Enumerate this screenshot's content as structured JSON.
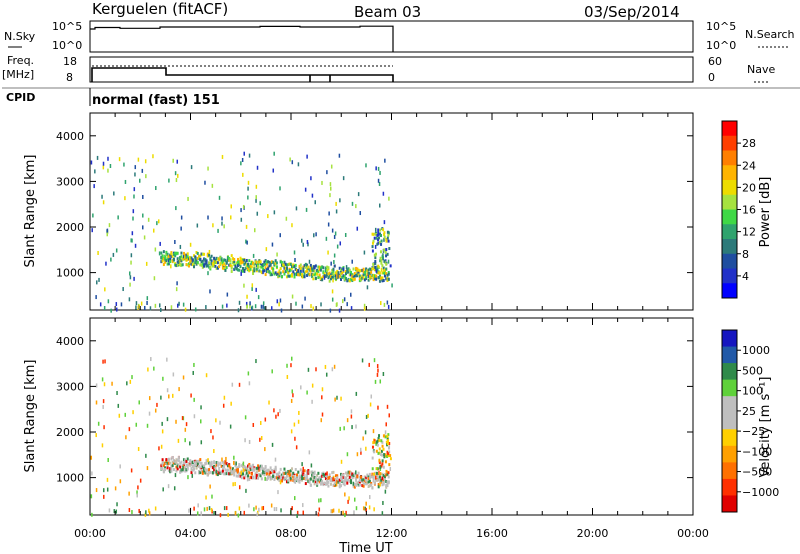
{
  "header": {
    "station": "Kerguelen (fitACF)",
    "beam": "Beam 03",
    "date": "03/Sep/2014"
  },
  "panel_labels": {
    "nsky": "N.Sky",
    "nsearch": "N.Search",
    "freq_top": "Freq.",
    "freq_unit": "[MHz]",
    "nave": "Nave",
    "cpid": "CPID",
    "cpid_value": "normal (fast) 151"
  },
  "ticks": {
    "nsky": [
      "10^5",
      "10^0"
    ],
    "nsearch": [
      "10^5",
      "10^0"
    ],
    "freq": [
      "18",
      "8"
    ],
    "nave": [
      "60",
      "0"
    ]
  },
  "chart_data": [
    {
      "type": "heatmap",
      "name": "power",
      "ylabel": "Slant Range [km]",
      "ylim": [
        180,
        4500
      ],
      "yticks": [
        "1000",
        "2000",
        "3000",
        "4000"
      ],
      "xlim": [
        0,
        24
      ],
      "colorbar": {
        "label": "Power [dB]",
        "ticks": [
          "28",
          "24",
          "20",
          "16",
          "12",
          "8",
          "4"
        ],
        "colors": [
          "#ff0000",
          "#ff3f00",
          "#ff7f00",
          "#ffb400",
          "#eddc00",
          "#a6e23f",
          "#3fd846",
          "#2fa36e",
          "#2c7a7a",
          "#1f4ea0",
          "#2131c8",
          "#0000ff"
        ]
      },
      "echo_band": [
        {
          "x": 2.8,
          "y": 1350
        },
        {
          "x": 4.0,
          "y": 1330
        },
        {
          "x": 6.0,
          "y": 1210
        },
        {
          "x": 8.0,
          "y": 1080
        },
        {
          "x": 10.0,
          "y": 1000
        },
        {
          "x": 11.9,
          "y": 980
        }
      ]
    },
    {
      "type": "heatmap",
      "name": "velocity",
      "ylabel": "Slant Range [km]",
      "ylim": [
        180,
        4500
      ],
      "yticks": [
        "1000",
        "2000",
        "3000",
        "4000"
      ],
      "xlim": [
        0,
        24
      ],
      "xticks": [
        "00:00",
        "04:00",
        "08:00",
        "12:00",
        "16:00",
        "20:00",
        "00:00"
      ],
      "xlabel": "Time UT",
      "colorbar": {
        "label": "Velocity [m s⁻¹]",
        "ticks": [
          "1000",
          "500",
          "100",
          "25",
          "−25",
          "−100",
          "−500",
          "−1000"
        ],
        "colors": [
          "#1616c0",
          "#2159a8",
          "#2f8a4a",
          "#5fd13a",
          "#bfbfbf",
          "#bfbfbf",
          "#ffd000",
          "#ffa000",
          "#ff7000",
          "#ff3000",
          "#e00000"
        ]
      },
      "echo_band": [
        {
          "x": 2.8,
          "y": 1330
        },
        {
          "x": 4.0,
          "y": 1280
        },
        {
          "x": 6.0,
          "y": 1190
        },
        {
          "x": 8.0,
          "y": 1060
        },
        {
          "x": 10.0,
          "y": 990
        },
        {
          "x": 11.9,
          "y": 970
        }
      ]
    }
  ]
}
